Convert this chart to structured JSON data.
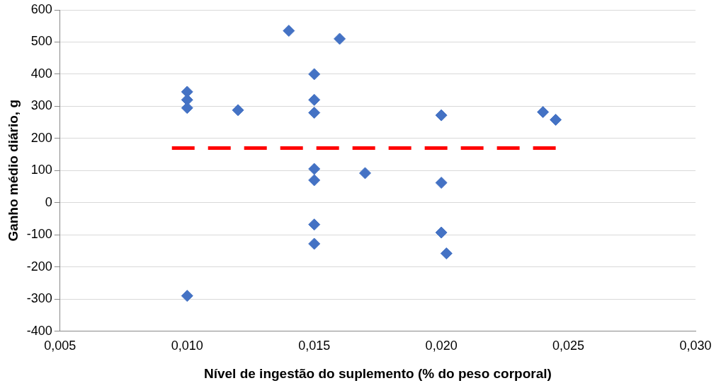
{
  "chart_data": {
    "type": "scatter",
    "xlabel": "Nível de ingestão do suplemento (% do peso corporal)",
    "ylabel": "Ganho médio diário, g",
    "series": [
      {
        "color": "#4472c4",
        "x": [
          0.01,
          0.01,
          0.01,
          0.01,
          0.012,
          0.014,
          0.015,
          0.015,
          0.015,
          0.015,
          0.015,
          0.015,
          0.015,
          0.016,
          0.017,
          0.02,
          0.02,
          0.02,
          0.0202,
          0.024,
          0.0245
        ],
        "values": [
          345,
          320,
          295,
          -290,
          288,
          535,
          400,
          320,
          280,
          105,
          70,
          -68,
          -128,
          510,
          92,
          272,
          62,
          -93,
          -158,
          282,
          258
        ]
      },
      {
        "type": "line",
        "color": "#ff0000",
        "line_style": "dashed",
        "marker": "none",
        "x": [
          0.0094,
          0.0245
        ],
        "values": [
          170,
          170
        ]
      }
    ],
    "marker": "diamond",
    "grid": "y",
    "legend": false,
    "xlim": [
      0.005,
      0.03
    ],
    "xticks": [
      {
        "value": 0.005,
        "label": "0,005"
      },
      {
        "value": 0.01,
        "label": "0,010"
      },
      {
        "value": 0.015,
        "label": "0,015"
      },
      {
        "value": 0.02,
        "label": "0,020"
      },
      {
        "value": 0.025,
        "label": "0,025"
      },
      {
        "value": 0.03,
        "label": "0,030"
      }
    ],
    "ylim": [
      -400,
      600
    ],
    "yticks": [
      -400,
      -300,
      -200,
      -100,
      0,
      100,
      200,
      300,
      400,
      500,
      600
    ]
  }
}
